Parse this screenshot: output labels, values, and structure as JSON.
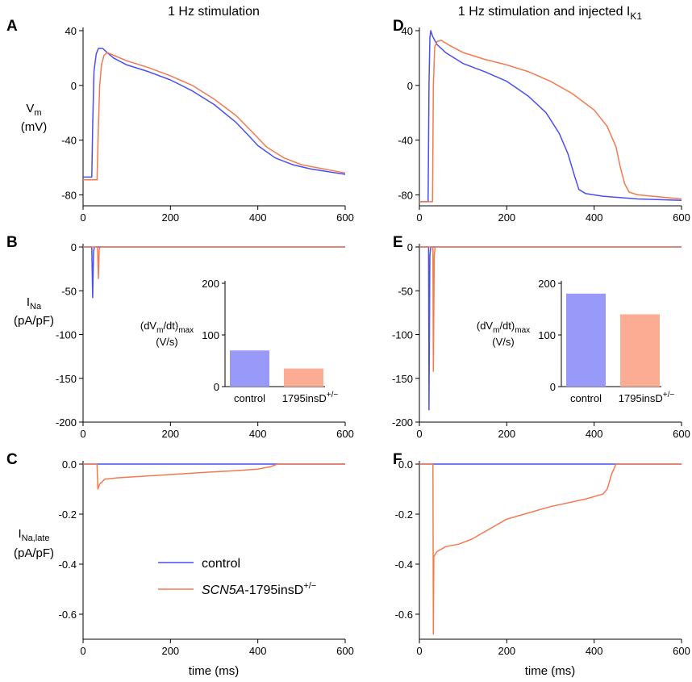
{
  "colors": {
    "control": "#4a4ef2",
    "mutant": "#f5784f",
    "bar_control": "#9999f9",
    "bar_mutant": "#fcac92"
  },
  "titles": {
    "left": "1 Hz stimulation",
    "right_main": "1 Hz stimulation and injected I",
    "right_sub": "K1"
  },
  "ylabels": {
    "vm": {
      "main": "V",
      "sub": "m",
      "unit": "(mV)"
    },
    "ina": {
      "main": "I",
      "sub": "Na",
      "unit": "(pA/pF)"
    },
    "inalate": {
      "main": "I",
      "sub": "Na,late",
      "unit": "(pA/pF)"
    }
  },
  "xlabel": "time (ms)",
  "legend": {
    "control": "control",
    "mutant_italic": "SCN5A",
    "mutant_rest": "-1795insD",
    "mutant_sup": "+/−"
  },
  "inset_label": {
    "main": "(dV",
    "sub1": "m",
    "mid": "/dt)",
    "sub2": "max",
    "unit": "(V/s)"
  },
  "chart_data": [
    {
      "id": "A",
      "type": "line",
      "title": "1 Hz stimulation",
      "xlabel": "time (ms)",
      "ylabel": "Vm (mV)",
      "xlim": [
        0,
        600
      ],
      "ylim": [
        -88,
        40
      ],
      "xticks": [
        0,
        200,
        400,
        600
      ],
      "yticks": [
        40,
        0,
        -40,
        -80
      ],
      "series": [
        {
          "name": "control",
          "points": [
            [
              0,
              -67
            ],
            [
              20,
              -67
            ],
            [
              22,
              -30
            ],
            [
              25,
              10
            ],
            [
              30,
              23
            ],
            [
              35,
              27
            ],
            [
              45,
              27
            ],
            [
              55,
              24
            ],
            [
              70,
              20
            ],
            [
              100,
              15
            ],
            [
              150,
              10
            ],
            [
              200,
              4
            ],
            [
              250,
              -4
            ],
            [
              300,
              -14
            ],
            [
              350,
              -27
            ],
            [
              380,
              -37
            ],
            [
              400,
              -44
            ],
            [
              440,
              -53
            ],
            [
              480,
              -58
            ],
            [
              520,
              -61
            ],
            [
              600,
              -65
            ]
          ]
        },
        {
          "name": "SCN5A-1795insD+/-",
          "points": [
            [
              0,
              -69
            ],
            [
              32,
              -69
            ],
            [
              35,
              -30
            ],
            [
              38,
              0
            ],
            [
              42,
              15
            ],
            [
              48,
              22
            ],
            [
              55,
              24
            ],
            [
              70,
              22
            ],
            [
              100,
              18
            ],
            [
              150,
              13
            ],
            [
              200,
              7
            ],
            [
              250,
              0
            ],
            [
              300,
              -10
            ],
            [
              350,
              -22
            ],
            [
              390,
              -35
            ],
            [
              420,
              -45
            ],
            [
              460,
              -53
            ],
            [
              500,
              -58
            ],
            [
              550,
              -61
            ],
            [
              600,
              -64
            ]
          ]
        }
      ]
    },
    {
      "id": "B",
      "type": "line",
      "xlabel": "time (ms)",
      "ylabel": "INa (pA/pF)",
      "xlim": [
        0,
        600
      ],
      "ylim": [
        -200,
        0
      ],
      "xticks": [
        0,
        200,
        400,
        600
      ],
      "yticks": [
        0,
        -50,
        -100,
        -150,
        -200
      ],
      "series": [
        {
          "name": "control",
          "points": [
            [
              0,
              0
            ],
            [
              20,
              0
            ],
            [
              22,
              -58
            ],
            [
              24,
              -5
            ],
            [
              26,
              0
            ],
            [
              600,
              0
            ]
          ]
        },
        {
          "name": "SCN5A-1795insD+/-",
          "points": [
            [
              0,
              0
            ],
            [
              33,
              0
            ],
            [
              35,
              -36
            ],
            [
              37,
              -3
            ],
            [
              39,
              0
            ],
            [
              600,
              0
            ]
          ]
        }
      ],
      "inset": {
        "type": "bar",
        "categories": [
          "control",
          "1795insD+/-"
        ],
        "values": [
          70,
          35
        ],
        "ylim": [
          0,
          200
        ],
        "yticks": [
          0,
          100,
          200
        ],
        "ylabel": "(dVm/dt)max (V/s)"
      }
    },
    {
      "id": "C",
      "type": "line",
      "xlabel": "time (ms)",
      "ylabel": "INa,late (pA/pF)",
      "xlim": [
        0,
        600
      ],
      "ylim": [
        -0.7,
        0
      ],
      "xticks": [
        0,
        200,
        400,
        600
      ],
      "yticks": [
        0.0,
        -0.2,
        -0.4,
        -0.6
      ],
      "series": [
        {
          "name": "control",
          "points": [
            [
              0,
              0
            ],
            [
              600,
              0
            ]
          ]
        },
        {
          "name": "SCN5A-1795insD+/-",
          "points": [
            [
              0,
              0
            ],
            [
              32,
              0
            ],
            [
              34,
              -0.1
            ],
            [
              38,
              -0.08
            ],
            [
              50,
              -0.06
            ],
            [
              80,
              -0.055
            ],
            [
              150,
              -0.047
            ],
            [
              250,
              -0.036
            ],
            [
              350,
              -0.026
            ],
            [
              400,
              -0.02
            ],
            [
              430,
              -0.01
            ],
            [
              445,
              0
            ],
            [
              600,
              0
            ]
          ]
        }
      ]
    },
    {
      "id": "D",
      "type": "line",
      "title": "1 Hz stimulation and injected IK1",
      "xlabel": "time (ms)",
      "ylabel": "Vm (mV)",
      "xlim": [
        0,
        600
      ],
      "ylim": [
        -88,
        40
      ],
      "xticks": [
        0,
        200,
        400,
        600
      ],
      "yticks": [
        40,
        0,
        -40,
        -80
      ],
      "series": [
        {
          "name": "control",
          "points": [
            [
              0,
              -85
            ],
            [
              20,
              -85
            ],
            [
              22,
              0
            ],
            [
              24,
              35
            ],
            [
              26,
              40
            ],
            [
              30,
              36
            ],
            [
              40,
              30
            ],
            [
              60,
              24
            ],
            [
              80,
              20
            ],
            [
              100,
              16
            ],
            [
              150,
              10
            ],
            [
              200,
              3
            ],
            [
              250,
              -8
            ],
            [
              290,
              -20
            ],
            [
              320,
              -35
            ],
            [
              340,
              -50
            ],
            [
              355,
              -66
            ],
            [
              365,
              -76
            ],
            [
              380,
              -79
            ],
            [
              420,
              -81
            ],
            [
              500,
              -83
            ],
            [
              600,
              -84
            ]
          ]
        },
        {
          "name": "SCN5A-1795insD+/-",
          "points": [
            [
              0,
              -85
            ],
            [
              30,
              -85
            ],
            [
              32,
              0
            ],
            [
              35,
              28
            ],
            [
              40,
              32
            ],
            [
              50,
              33
            ],
            [
              70,
              29
            ],
            [
              100,
              24
            ],
            [
              150,
              19
            ],
            [
              200,
              15
            ],
            [
              250,
              10
            ],
            [
              300,
              3
            ],
            [
              350,
              -6
            ],
            [
              400,
              -18
            ],
            [
              430,
              -30
            ],
            [
              450,
              -45
            ],
            [
              460,
              -60
            ],
            [
              470,
              -72
            ],
            [
              480,
              -78
            ],
            [
              500,
              -80
            ],
            [
              600,
              -83
            ]
          ]
        }
      ]
    },
    {
      "id": "E",
      "type": "line",
      "xlabel": "time (ms)",
      "ylabel": "INa (pA/pF)",
      "xlim": [
        0,
        600
      ],
      "ylim": [
        -200,
        0
      ],
      "xticks": [
        0,
        200,
        400,
        600
      ],
      "yticks": [
        0,
        -50,
        -100,
        -150,
        -200
      ],
      "series": [
        {
          "name": "control",
          "points": [
            [
              0,
              0
            ],
            [
              21,
              0
            ],
            [
              22,
              -186
            ],
            [
              24,
              -10
            ],
            [
              26,
              0
            ],
            [
              600,
              0
            ]
          ]
        },
        {
          "name": "SCN5A-1795insD+/-",
          "points": [
            [
              0,
              0
            ],
            [
              31,
              0
            ],
            [
              32,
              -142
            ],
            [
              34,
              -10
            ],
            [
              36,
              0
            ],
            [
              600,
              0
            ]
          ]
        }
      ],
      "inset": {
        "type": "bar",
        "categories": [
          "control",
          "1795insD+/-"
        ],
        "values": [
          180,
          140
        ],
        "ylim": [
          0,
          200
        ],
        "yticks": [
          0,
          100,
          200
        ],
        "ylabel": "(dVm/dt)max (V/s)"
      }
    },
    {
      "id": "F",
      "type": "line",
      "xlabel": "time (ms)",
      "ylabel": "INa,late (pA/pF)",
      "xlim": [
        0,
        600
      ],
      "ylim": [
        -0.7,
        0
      ],
      "xticks": [
        0,
        200,
        400,
        600
      ],
      "yticks": [
        0.0,
        -0.2,
        -0.4,
        -0.6
      ],
      "series": [
        {
          "name": "control",
          "points": [
            [
              0,
              0
            ],
            [
              600,
              0
            ]
          ]
        },
        {
          "name": "SCN5A-1795insD+/-",
          "points": [
            [
              0,
              0
            ],
            [
              31,
              0
            ],
            [
              32,
              -0.68
            ],
            [
              33,
              -0.37
            ],
            [
              40,
              -0.35
            ],
            [
              60,
              -0.33
            ],
            [
              90,
              -0.32
            ],
            [
              120,
              -0.3
            ],
            [
              200,
              -0.22
            ],
            [
              300,
              -0.17
            ],
            [
              380,
              -0.14
            ],
            [
              420,
              -0.12
            ],
            [
              430,
              -0.1
            ],
            [
              440,
              -0.04
            ],
            [
              450,
              0
            ],
            [
              600,
              0
            ]
          ]
        }
      ]
    }
  ]
}
